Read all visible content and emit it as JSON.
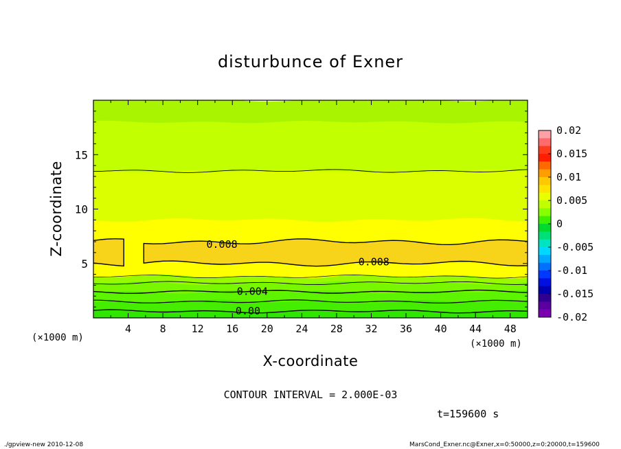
{
  "chart_data": {
    "type": "heatmap",
    "title": "disturbunce of Exner",
    "xlabel": "X-coordinate",
    "ylabel": "Z-coordinate",
    "x_unit_left": "(×1000 m)",
    "x_unit_right": "(×1000 m)",
    "xlim": [
      0,
      50
    ],
    "ylim": [
      0,
      20
    ],
    "x_ticks": [
      4,
      8,
      12,
      16,
      20,
      24,
      28,
      32,
      36,
      40,
      44,
      48
    ],
    "y_ticks": [
      5,
      10,
      15
    ],
    "contour_labels": [
      {
        "text": "0.008",
        "x": 14.8,
        "z": 6.8
      },
      {
        "text": "0.008",
        "x": 32.3,
        "z": 5.2
      },
      {
        "text": "0.004",
        "x": 18.3,
        "z": 2.5
      },
      {
        "text": "0.00",
        "x": 17.8,
        "z": 0.7
      }
    ],
    "contour_interval": "CONTOUR INTERVAL = 2.000E-03",
    "time": "t=159600 s",
    "colorbar": {
      "levels": [
        "0.02",
        "0.015",
        "0.01",
        "0.005",
        "0",
        "-0.005",
        "-0.01",
        "-0.015",
        "-0.02"
      ],
      "range": [
        -0.02,
        0.02
      ]
    },
    "bands_by_height": [
      {
        "z": [
          0,
          0.6
        ],
        "value_range": [
          0.0,
          0.001
        ],
        "color": "#2ee600"
      },
      {
        "z": [
          0.6,
          1.5
        ],
        "value_range": [
          0.001,
          0.002
        ],
        "color": "#45ee00"
      },
      {
        "z": [
          1.5,
          2.4
        ],
        "value_range": [
          0.002,
          0.003
        ],
        "color": "#5cf400"
      },
      {
        "z": [
          2.4,
          3.2
        ],
        "value_range": [
          0.003,
          0.004
        ],
        "color": "#78f700"
      },
      {
        "z": [
          3.2,
          3.8
        ],
        "value_range": [
          0.004,
          0.005
        ],
        "color": "#99fa00"
      },
      {
        "z": [
          3.8,
          9.0
        ],
        "value_range": [
          0.006,
          0.008
        ],
        "color": "#ffff00"
      },
      {
        "z": [
          9.0,
          13.5
        ],
        "value_range": [
          0.005,
          0.006
        ],
        "color": "#dcff00"
      },
      {
        "z": [
          13.5,
          18.0
        ],
        "value_range": [
          0.004,
          0.005
        ],
        "color": "#c2ff00"
      },
      {
        "z": [
          18.0,
          20.0
        ],
        "value_range": [
          0.003,
          0.004
        ],
        "color": "#a9f400"
      }
    ],
    "core_region": {
      "value_range": [
        0.008,
        0.01
      ],
      "color": "#f7d31a",
      "z": [
        4.8,
        7.2
      ]
    }
  },
  "footer": {
    "left": "./gpview-new  2010-12-08",
    "right": "MarsCond_Exner.nc@Exner,x=0:50000,z=0:20000,t=159600"
  }
}
